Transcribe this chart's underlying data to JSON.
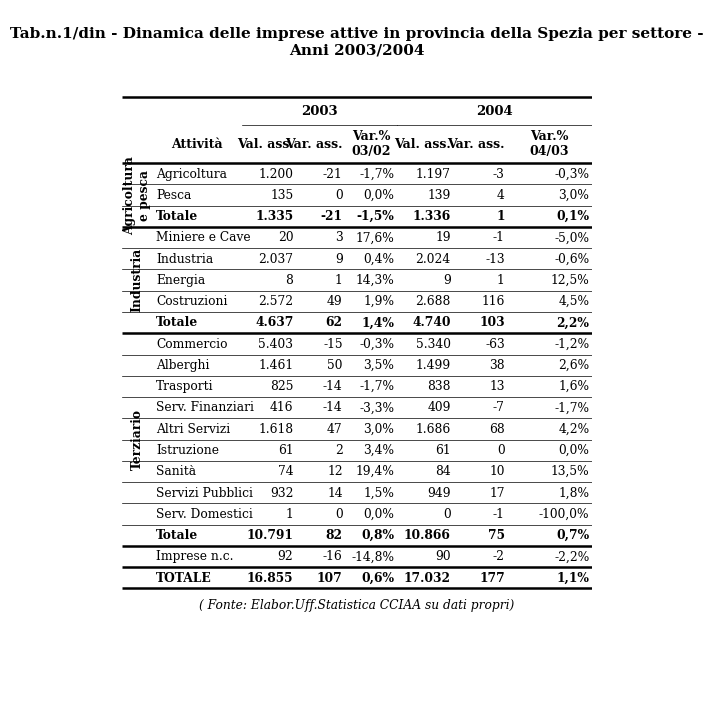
{
  "title": "Tab.n.1/din - Dinamica delle imprese attive in provincia della Spezia per settore -\nAnni 2003/2004",
  "footer": "( Fonte: Elabor.Uff.Statistica CCIAA su dati propri)",
  "rows": [
    [
      "Agricoltura",
      "1.200",
      "-21",
      "-1,7%",
      "1.197",
      "-3",
      "-0,3%",
      false
    ],
    [
      "Pesca",
      "135",
      "0",
      "0,0%",
      "139",
      "4",
      "3,0%",
      false
    ],
    [
      "Totale",
      "1.335",
      "-21",
      "-1,5%",
      "1.336",
      "1",
      "0,1%",
      true
    ],
    [
      "Miniere e Cave",
      "20",
      "3",
      "17,6%",
      "19",
      "-1",
      "-5,0%",
      false
    ],
    [
      "Industria",
      "2.037",
      "9",
      "0,4%",
      "2.024",
      "-13",
      "-0,6%",
      false
    ],
    [
      "Energia",
      "8",
      "1",
      "14,3%",
      "9",
      "1",
      "12,5%",
      false
    ],
    [
      "Costruzioni",
      "2.572",
      "49",
      "1,9%",
      "2.688",
      "116",
      "4,5%",
      false
    ],
    [
      "Totale",
      "4.637",
      "62",
      "1,4%",
      "4.740",
      "103",
      "2,2%",
      true
    ],
    [
      "Commercio",
      "5.403",
      "-15",
      "-0,3%",
      "5.340",
      "-63",
      "-1,2%",
      false
    ],
    [
      "Alberghi",
      "1.461",
      "50",
      "3,5%",
      "1.499",
      "38",
      "2,6%",
      false
    ],
    [
      "Trasporti",
      "825",
      "-14",
      "-1,7%",
      "838",
      "13",
      "1,6%",
      false
    ],
    [
      "Serv. Finanziari",
      "416",
      "-14",
      "-3,3%",
      "409",
      "-7",
      "-1,7%",
      false
    ],
    [
      "Altri Servizi",
      "1.618",
      "47",
      "3,0%",
      "1.686",
      "68",
      "4,2%",
      false
    ],
    [
      "Istruzione",
      "61",
      "2",
      "3,4%",
      "61",
      "0",
      "0,0%",
      false
    ],
    [
      "Sanità",
      "74",
      "12",
      "19,4%",
      "84",
      "10",
      "13,5%",
      false
    ],
    [
      "Servizi Pubblici",
      "932",
      "14",
      "1,5%",
      "949",
      "17",
      "1,8%",
      false
    ],
    [
      "Serv. Domestici",
      "1",
      "0",
      "0,0%",
      "0",
      "-1",
      "-100,0%",
      false
    ],
    [
      "Totale",
      "10.791",
      "82",
      "0,8%",
      "10.866",
      "75",
      "0,7%",
      true
    ],
    [
      "Imprese n.c.",
      "92",
      "-16",
      "-14,8%",
      "90",
      "-2",
      "-2,2%",
      false
    ],
    [
      "TOTALE",
      "16.855",
      "107",
      "0,6%",
      "17.032",
      "177",
      "1,1%",
      true
    ]
  ],
  "sections": [
    {
      "label": "Agricoltura\ne pesca",
      "start": 0,
      "end": 2
    },
    {
      "label": "Industria",
      "start": 3,
      "end": 7
    },
    {
      "label": "Terziario",
      "start": 8,
      "end": 17
    }
  ],
  "bg_color": "#ffffff",
  "text_color": "#000000",
  "title_fontsize": 11.0,
  "header_fontsize": 9.0,
  "data_fontsize": 8.8,
  "section_fontsize": 8.8,
  "thick_lw": 1.8,
  "thin_lw": 0.5
}
